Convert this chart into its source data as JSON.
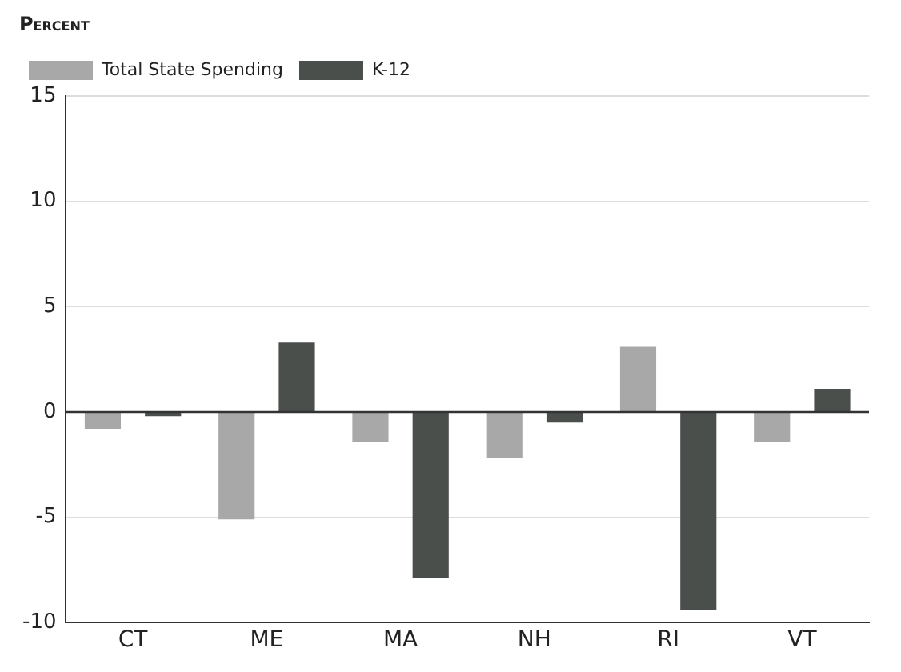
{
  "chart_data": {
    "type": "bar",
    "ylabel": "Percent",
    "categories": [
      "CT",
      "ME",
      "MA",
      "NH",
      "RI",
      "VT"
    ],
    "series": [
      {
        "name": "Total State Spending",
        "color": "#a8a8a8",
        "values": [
          -0.8,
          -5.1,
          -1.4,
          -2.2,
          3.1,
          -1.4
        ]
      },
      {
        "name": "K-12",
        "color": "#4a4f4c",
        "values": [
          -0.2,
          3.3,
          -7.9,
          -0.5,
          -9.4,
          1.1
        ]
      }
    ],
    "ylim": [
      -10,
      15
    ],
    "yticks": [
      -10,
      -5,
      0,
      5,
      10,
      15
    ],
    "grid": "y",
    "legend": "top left"
  }
}
